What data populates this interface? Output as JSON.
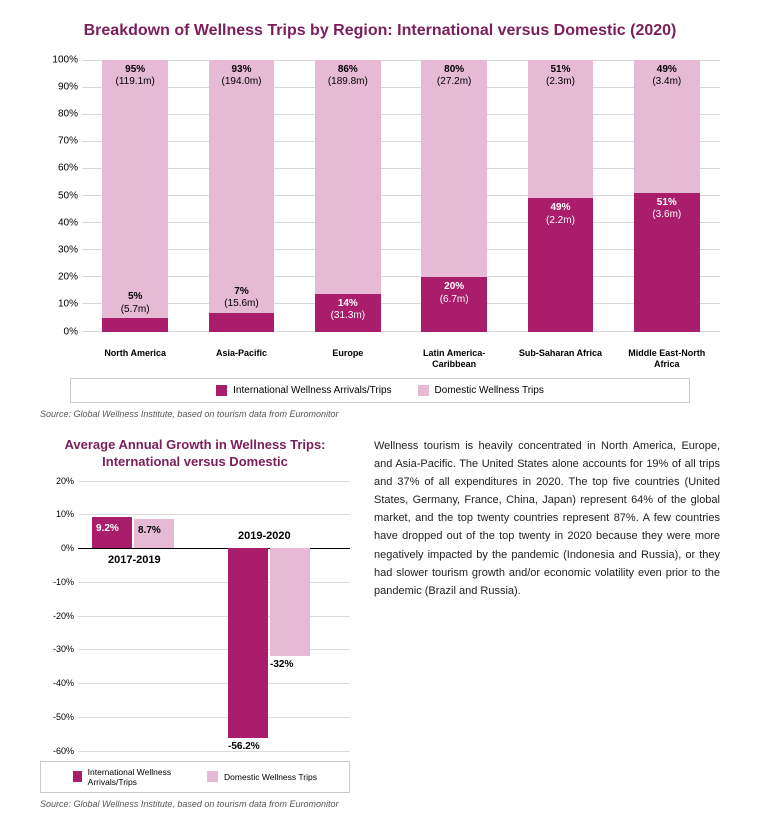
{
  "colors": {
    "intl": "#a91d6a",
    "dom": "#e6b9d4",
    "title": "#7b1e5a",
    "bg": "#ffffff",
    "grid": "#d8d8d8"
  },
  "chart1": {
    "title": "Breakdown of Wellness Trips by Region:\nInternational versus Domestic (2020)",
    "type": "stacked-bar-100",
    "ylim": [
      0,
      100
    ],
    "ytick_step": 10,
    "categories": [
      "North America",
      "Asia-Pacific",
      "Europe",
      "Latin America-Caribbean",
      "Sub-Saharan Africa",
      "Middle East-North Africa"
    ],
    "intl_pct": [
      5,
      7,
      14,
      20,
      49,
      51
    ],
    "intl_abs": [
      "5.7m",
      "15.6m",
      "31.3m",
      "6.7m",
      "2.2m",
      "3.6m"
    ],
    "dom_pct": [
      95,
      93,
      86,
      80,
      51,
      49
    ],
    "dom_abs": [
      "119.1m",
      "194.0m",
      "189.8m",
      "27.2m",
      "2.3m",
      "3.4m"
    ],
    "legend": {
      "intl": "International Wellness Arrivals/Trips",
      "dom": "Domestic Wellness Trips"
    },
    "source": "Source: Global Wellness Institute, based on tourism data from Euromonitor"
  },
  "chart2": {
    "title": "Average Annual Growth in\nWellness Trips:\nInternational versus Domestic",
    "type": "grouped-bar",
    "ylim": [
      -60,
      20
    ],
    "ytick_step": 10,
    "periods": [
      "2017-2019",
      "2019-2020"
    ],
    "values": {
      "2017-2019": {
        "intl": 9.2,
        "dom": 8.7
      },
      "2019-2020": {
        "intl": -56.2,
        "dom": -32.0
      }
    },
    "legend": {
      "intl": "International Wellness Arrivals/Trips",
      "dom": "Domestic Wellness Trips"
    },
    "source": "Source: Global Wellness Institute, based on tourism data from Euromonitor"
  },
  "paragraph": "Wellness tourism is heavily concentrated in North America, Europe, and Asia-Pacific. The United States alone accounts for 19% of all trips and 37% of all expenditures in 2020. The top five countries (United States, Germany, France, China, Japan) represent 64% of the global market, and the top twenty countries represent 87%. A few countries have dropped out of the top twenty in 2020 because they were more negatively impacted by the pandemic (Indonesia and Russia), or they had slower tourism growth and/or economic volatility even prior to the pandemic (Brazil and Russia)."
}
